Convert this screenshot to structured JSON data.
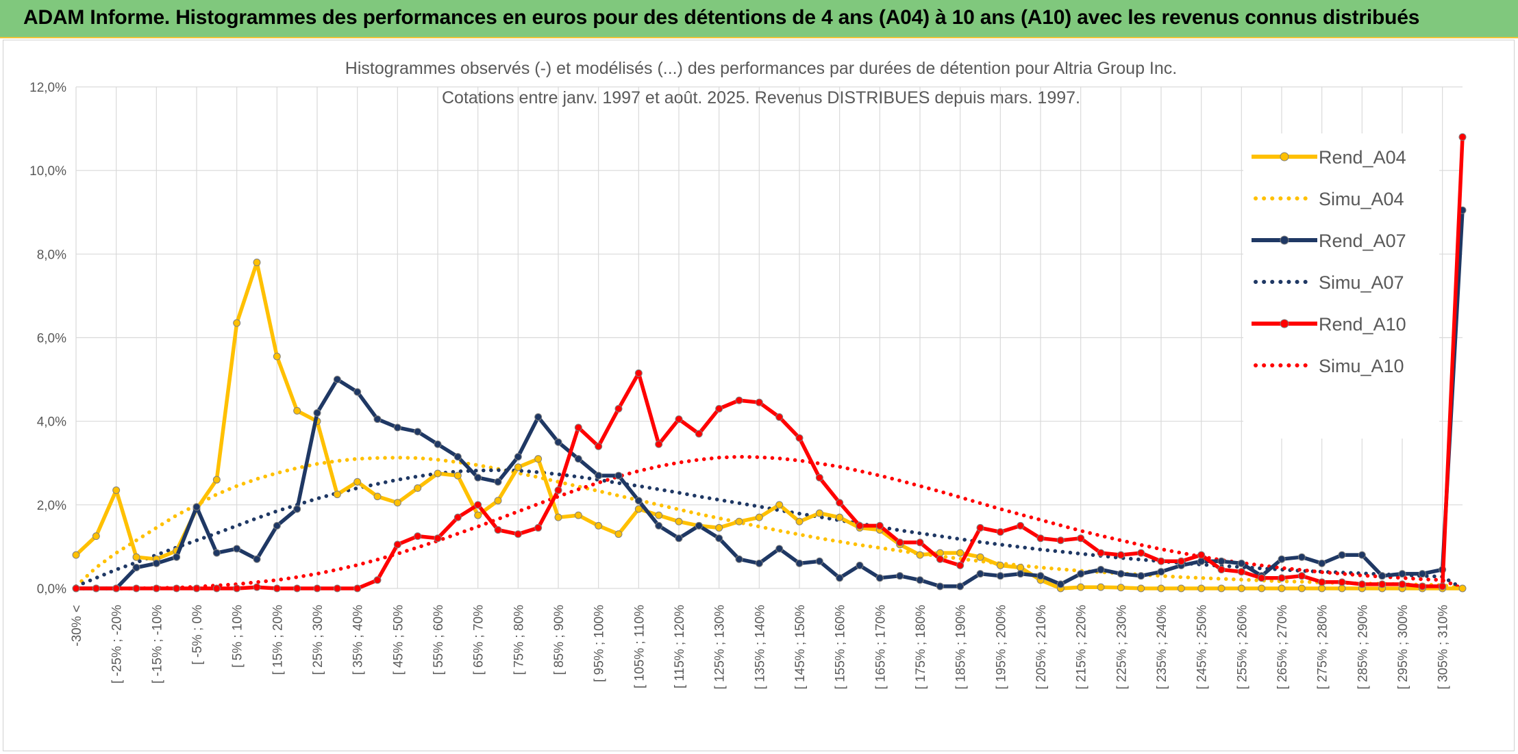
{
  "banner": {
    "title": "ADAM Informe. Histogrammes des performances en euros pour des détentions de 4 ans (A04) à 10 ans (A10) avec les revenus connus distribués",
    "color": "#80c87d",
    "border_color": "#f2c33a"
  },
  "chart_data": {
    "type": "line",
    "title": "Histogrammes observés (-) et modélisés (...) des performances par durées de détention pour Altria Group Inc.",
    "subtitle": "Cotations entre janv. 1997 et août. 2025. Revenus DISTRIBUES depuis mars. 1997.",
    "xlabel": "",
    "ylabel": "",
    "ylim": [
      0,
      12
    ],
    "y_ticks": [
      "0,0%",
      "2,0%",
      "4,0%",
      "6,0%",
      "8,0%",
      "10,0%",
      "12,0%"
    ],
    "grid": true,
    "legend_position": "right",
    "x_tick_labels": [
      "-30% <",
      "[ -25% ; -20%",
      "[ -15% ; -10%",
      "[ -5% ; 0%",
      "[ 5% ; 10%",
      "[ 15% ; 20%",
      "[ 25% ; 30%",
      "[ 35% ; 40%",
      "[ 45% ; 50%",
      "[ 55% ; 60%",
      "[ 65% ; 70%",
      "[ 75% ; 80%",
      "[ 85% ; 90%",
      "[ 95% ; 100%",
      "[ 105% ; 110%",
      "[ 115% ; 120%",
      "[ 125% ; 130%",
      "[ 135% ; 140%",
      "[ 145% ; 150%",
      "[ 155% ; 160%",
      "[ 165% ; 170%",
      "[ 175% ; 180%",
      "[ 185% ; 190%",
      "[ 195% ; 200%",
      "[ 205% ; 210%",
      "[ 215% ; 220%",
      "[ 225% ; 230%",
      "[ 235% ; 240%",
      "[ 245% ; 250%",
      "[ 255% ; 260%",
      "[ 265% ; 270%",
      "[ 275% ; 280%",
      "[ 285% ; 290%",
      "[ 295% ; 300%",
      "[ 305% ; 310%"
    ],
    "series": [
      {
        "name": "Rend_A04",
        "color": "#ffc000",
        "style": "solid",
        "markers": true,
        "values": [
          0.8,
          1.25,
          2.35,
          0.75,
          0.7,
          0.9,
          1.9,
          2.6,
          6.35,
          7.8,
          5.55,
          4.25,
          4.0,
          2.25,
          2.55,
          2.2,
          2.05,
          2.4,
          2.75,
          2.7,
          1.75,
          2.1,
          2.9,
          3.1,
          1.7,
          1.75,
          1.5,
          1.3,
          1.9,
          1.75,
          1.6,
          1.5,
          1.45,
          1.6,
          1.7,
          2.0,
          1.6,
          1.8,
          1.7,
          1.45,
          1.4,
          1.05,
          0.8,
          0.85,
          0.85,
          0.75,
          0.55,
          0.5,
          0.2,
          0.0,
          0.03,
          0.03,
          0.02,
          0.0,
          0.0,
          0.0,
          0.0,
          0.0,
          0.0,
          0.0,
          0.0,
          0.0,
          0.0,
          0.0,
          0.0,
          0.0,
          0.0,
          0.0,
          0.0,
          0.0
        ]
      },
      {
        "name": "Simu_A04",
        "color": "#ffc000",
        "style": "dotted",
        "markers": false,
        "values": [
          0.05,
          0.5,
          0.85,
          1.15,
          1.45,
          1.75,
          2.0,
          2.25,
          2.45,
          2.62,
          2.76,
          2.88,
          2.98,
          3.05,
          3.1,
          3.12,
          3.13,
          3.12,
          3.08,
          3.02,
          2.95,
          2.86,
          2.76,
          2.66,
          2.55,
          2.44,
          2.33,
          2.22,
          2.11,
          2.0,
          1.89,
          1.78,
          1.68,
          1.58,
          1.48,
          1.38,
          1.29,
          1.2,
          1.12,
          1.04,
          0.97,
          0.9,
          0.83,
          0.77,
          0.71,
          0.65,
          0.6,
          0.55,
          0.5,
          0.46,
          0.42,
          0.39,
          0.36,
          0.33,
          0.3,
          0.27,
          0.25,
          0.23,
          0.21,
          0.19,
          0.17,
          0.16,
          0.14,
          0.13,
          0.12,
          0.11,
          0.1,
          0.09,
          0.08,
          0.0
        ]
      },
      {
        "name": "Rend_A07",
        "color": "#1f3864",
        "style": "solid",
        "markers": true,
        "values": [
          0.0,
          0.0,
          0.0,
          0.5,
          0.6,
          0.75,
          1.95,
          0.85,
          0.95,
          0.7,
          1.5,
          1.9,
          4.2,
          5.0,
          4.7,
          4.05,
          3.85,
          3.75,
          3.45,
          3.15,
          2.65,
          2.55,
          3.15,
          4.1,
          3.5,
          3.1,
          2.7,
          2.7,
          2.1,
          1.5,
          1.2,
          1.5,
          1.2,
          0.7,
          0.6,
          0.95,
          0.6,
          0.65,
          0.25,
          0.55,
          0.25,
          0.3,
          0.2,
          0.05,
          0.05,
          0.35,
          0.3,
          0.35,
          0.3,
          0.1,
          0.35,
          0.45,
          0.35,
          0.3,
          0.4,
          0.55,
          0.65,
          0.65,
          0.6,
          0.3,
          0.7,
          0.75,
          0.6,
          0.8,
          0.8,
          0.3,
          0.35,
          0.35,
          0.45,
          9.05
        ]
      },
      {
        "name": "Simu_A07",
        "color": "#1f3864",
        "style": "dotted",
        "markers": false,
        "values": [
          0.05,
          0.25,
          0.45,
          0.62,
          0.8,
          0.98,
          1.15,
          1.32,
          1.5,
          1.68,
          1.85,
          2.0,
          2.15,
          2.28,
          2.4,
          2.5,
          2.6,
          2.68,
          2.75,
          2.8,
          2.82,
          2.83,
          2.82,
          2.78,
          2.73,
          2.67,
          2.6,
          2.52,
          2.45,
          2.37,
          2.29,
          2.2,
          2.12,
          2.04,
          1.96,
          1.87,
          1.79,
          1.71,
          1.63,
          1.55,
          1.47,
          1.39,
          1.32,
          1.25,
          1.18,
          1.11,
          1.05,
          0.99,
          0.93,
          0.88,
          0.83,
          0.78,
          0.73,
          0.69,
          0.65,
          0.61,
          0.57,
          0.54,
          0.51,
          0.48,
          0.45,
          0.42,
          0.4,
          0.38,
          0.36,
          0.34,
          0.32,
          0.3,
          0.28,
          0.0
        ]
      },
      {
        "name": "Rend_A10",
        "color": "#ff0000",
        "style": "solid",
        "markers": true,
        "values": [
          0.0,
          0.0,
          0.0,
          0.0,
          0.0,
          0.0,
          0.0,
          0.0,
          0.0,
          0.03,
          0.0,
          0.0,
          0.0,
          0.0,
          0.0,
          0.2,
          1.05,
          1.25,
          1.2,
          1.7,
          2.0,
          1.4,
          1.3,
          1.45,
          2.35,
          3.85,
          3.4,
          4.3,
          5.15,
          3.45,
          4.05,
          3.7,
          4.3,
          4.5,
          4.45,
          4.1,
          3.6,
          2.65,
          2.05,
          1.5,
          1.5,
          1.1,
          1.1,
          0.7,
          0.55,
          1.45,
          1.35,
          1.5,
          1.2,
          1.15,
          1.2,
          0.85,
          0.8,
          0.85,
          0.65,
          0.65,
          0.8,
          0.45,
          0.4,
          0.25,
          0.25,
          0.3,
          0.15,
          0.15,
          0.1,
          0.1,
          0.1,
          0.05,
          0.05,
          10.8
        ]
      },
      {
        "name": "Simu_A10",
        "color": "#ff0000",
        "style": "dotted",
        "markers": false,
        "values": [
          0.0,
          0.0,
          0.0,
          0.0,
          0.01,
          0.02,
          0.04,
          0.07,
          0.1,
          0.15,
          0.2,
          0.27,
          0.35,
          0.45,
          0.56,
          0.69,
          0.83,
          0.98,
          1.14,
          1.31,
          1.48,
          1.66,
          1.84,
          2.02,
          2.2,
          2.37,
          2.53,
          2.68,
          2.81,
          2.92,
          3.01,
          3.08,
          3.13,
          3.15,
          3.14,
          3.11,
          3.06,
          2.99,
          2.91,
          2.81,
          2.7,
          2.58,
          2.45,
          2.32,
          2.18,
          2.04,
          1.9,
          1.77,
          1.64,
          1.51,
          1.38,
          1.26,
          1.15,
          1.04,
          0.94,
          0.85,
          0.76,
          0.68,
          0.61,
          0.55,
          0.49,
          0.44,
          0.39,
          0.35,
          0.31,
          0.28,
          0.25,
          0.22,
          0.2,
          0.0
        ]
      }
    ]
  }
}
